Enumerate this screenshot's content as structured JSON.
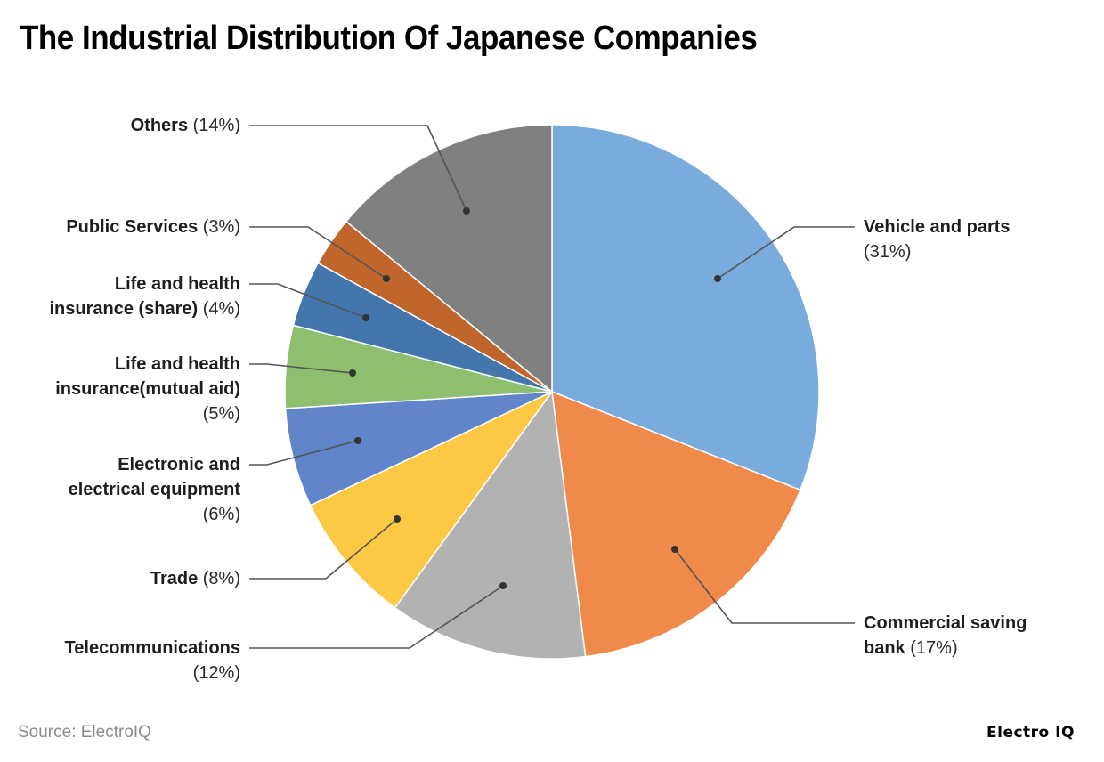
{
  "title": "The Industrial Distribution Of Japanese Companies",
  "source": "Source: ElectroIQ",
  "brand": "Electro IQ",
  "chart_data": {
    "type": "pie",
    "title": "The Industrial Distribution Of Japanese Companies",
    "start_angle_deg": 0,
    "direction": "clockwise",
    "slices": [
      {
        "label": "Vehicle and parts",
        "value": 31,
        "pct_text": "(31%)",
        "color": "#7aabdd"
      },
      {
        "label": "Commercial saving bank",
        "value": 17,
        "pct_text": "(17%)",
        "color": "#f08a4b"
      },
      {
        "label": "Telecommunications",
        "value": 12,
        "pct_text": "(12%)",
        "color": "#b2b2b2"
      },
      {
        "label": "Trade",
        "value": 8,
        "pct_text": "(8%)",
        "color": "#fdc843"
      },
      {
        "label": "Electronic and electrical equipment",
        "value": 6,
        "pct_text": "(6%)",
        "color": "#6085cb"
      },
      {
        "label": "Life and health insurance(mutual aid)",
        "value": 5,
        "pct_text": "(5%)",
        "color": "#8dbf6e"
      },
      {
        "label": "Life and health insurance (share)",
        "value": 4,
        "pct_text": "(4%)",
        "color": "#4276ad"
      },
      {
        "label": "Public Services",
        "value": 3,
        "pct_text": "(3%)",
        "color": "#c0652c"
      },
      {
        "label": "Others",
        "value": 14,
        "pct_text": "(14%)",
        "color": "#808080"
      }
    ]
  },
  "labels": {
    "vehicle": {
      "name": "Vehicle and parts",
      "pct": "(31%)"
    },
    "bank": {
      "name1": "Commercial saving",
      "name2": "bank",
      "pct": "(17%)"
    },
    "telecom": {
      "name": "Telecommunications",
      "pct": "(12%)"
    },
    "trade": {
      "name": "Trade",
      "pct": "(8%)"
    },
    "electronic": {
      "name1": "Electronic and",
      "name2": "electrical equipment",
      "pct": "(6%)"
    },
    "mutual": {
      "name1": "Life and health",
      "name2": "insurance(mutual aid)",
      "pct": "(5%)"
    },
    "share": {
      "name1": "Life and health",
      "name2": "insurance (share)",
      "pct": "(4%)"
    },
    "public": {
      "name": "Public Services",
      "pct": "(3%)"
    },
    "others": {
      "name": "Others",
      "pct": "(14%)"
    }
  }
}
